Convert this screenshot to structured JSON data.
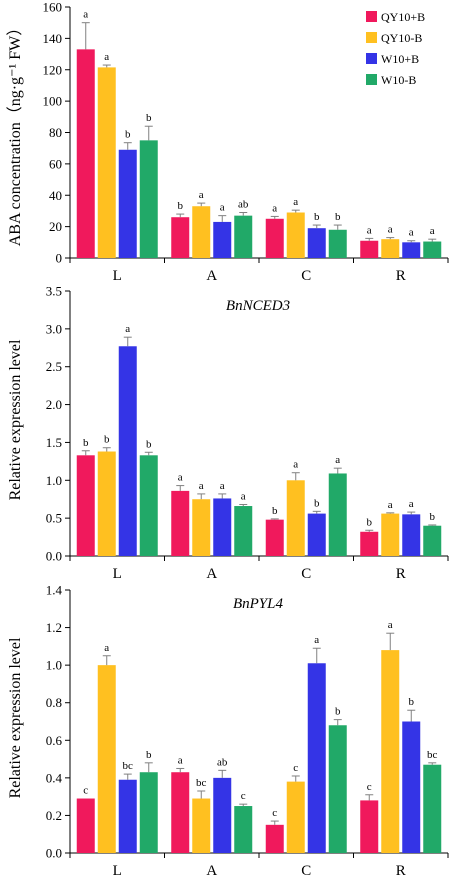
{
  "legend": {
    "entries": [
      "QY10+B",
      "QY10-B",
      "W10+B",
      "W10-B"
    ],
    "colors": [
      "#f0195c",
      "#ffc020",
      "#3434e6",
      "#21a968"
    ],
    "placement": "top-right of panel 1"
  },
  "chart_data": [
    {
      "type": "bar",
      "title": "",
      "ylabel": "ABA concentration（ng·g⁻¹ FW）",
      "categories": [
        "L",
        "A",
        "C",
        "R"
      ],
      "ylim": [
        0,
        160
      ],
      "yticks": [
        0,
        20,
        40,
        60,
        80,
        100,
        120,
        140,
        160
      ],
      "ytick_labels": [
        "0",
        "20",
        "40",
        "60",
        "80",
        "100",
        "120",
        "140",
        "160"
      ],
      "series": [
        {
          "name": "QY10+B",
          "values": [
            133,
            26,
            25,
            11
          ],
          "errors": [
            17,
            2,
            1.5,
            1.5
          ],
          "labels": [
            "a",
            "b",
            "a",
            "a"
          ]
        },
        {
          "name": "QY10-B",
          "values": [
            121.5,
            33,
            29,
            12
          ],
          "errors": [
            1.5,
            2,
            1.5,
            1
          ],
          "labels": [
            "a",
            "a",
            "a",
            "a"
          ]
        },
        {
          "name": "W10+B",
          "values": [
            69,
            23,
            19,
            10
          ],
          "errors": [
            4.5,
            4,
            2,
            1
          ],
          "labels": [
            "b",
            "a",
            "b",
            "a"
          ]
        },
        {
          "name": "W10-B",
          "values": [
            75,
            27,
            18,
            10.5
          ],
          "errors": [
            9,
            2,
            3,
            1.5
          ],
          "labels": [
            "b",
            "ab",
            "b",
            "a"
          ]
        }
      ]
    },
    {
      "type": "bar",
      "title": "BnNCED3",
      "ylabel": "Relative expression level",
      "categories": [
        "L",
        "A",
        "C",
        "R"
      ],
      "ylim": [
        0,
        3.5
      ],
      "yticks": [
        0,
        0.5,
        1,
        1.5,
        2,
        2.5,
        3,
        3.5
      ],
      "ytick_labels": [
        "0.0",
        "0.5",
        "1.0",
        "1.5",
        "2.0",
        "2.5",
        "3.0",
        "3.5"
      ],
      "series": [
        {
          "name": "QY10+B",
          "values": [
            1.33,
            0.86,
            0.48,
            0.32
          ],
          "errors": [
            0.06,
            0.07,
            0.01,
            0.02
          ],
          "labels": [
            "b",
            "a",
            "b",
            "b"
          ]
        },
        {
          "name": "QY10-B",
          "values": [
            1.38,
            0.75,
            1.0,
            0.56
          ],
          "errors": [
            0.05,
            0.07,
            0.1,
            0.01
          ],
          "labels": [
            "b",
            "a",
            "a",
            "a"
          ]
        },
        {
          "name": "W10+B",
          "values": [
            2.77,
            0.76,
            0.56,
            0.55
          ],
          "errors": [
            0.12,
            0.06,
            0.03,
            0.03
          ],
          "labels": [
            "a",
            "a",
            "b",
            "a"
          ]
        },
        {
          "name": "W10-B",
          "values": [
            1.33,
            0.66,
            1.09,
            0.4
          ],
          "errors": [
            0.04,
            0.02,
            0.07,
            0.01
          ],
          "labels": [
            "b",
            "a",
            "a",
            "b"
          ]
        }
      ]
    },
    {
      "type": "bar",
      "title": "BnPYL4",
      "ylabel": "Relative expression level",
      "categories": [
        "L",
        "A",
        "C",
        "R"
      ],
      "ylim": [
        0,
        1.4
      ],
      "yticks": [
        0,
        0.2,
        0.4,
        0.6,
        0.8,
        1,
        1.2,
        1.4
      ],
      "ytick_labels": [
        "0.0",
        "0.2",
        "0.4",
        "0.6",
        "0.8",
        "1.0",
        "1.2",
        "1.4"
      ],
      "series": [
        {
          "name": "QY10+B",
          "values": [
            0.29,
            0.43,
            0.15,
            0.28
          ],
          "errors": [
            0.0,
            0.02,
            0.02,
            0.03
          ],
          "labels": [
            "c",
            "a",
            "c",
            "c"
          ]
        },
        {
          "name": "QY10-B",
          "values": [
            1.0,
            0.29,
            0.38,
            1.08
          ],
          "errors": [
            0.05,
            0.04,
            0.03,
            0.09
          ],
          "labels": [
            "a",
            "bc",
            "c",
            "a"
          ]
        },
        {
          "name": "W10+B",
          "values": [
            0.39,
            0.4,
            1.01,
            0.7
          ],
          "errors": [
            0.03,
            0.04,
            0.08,
            0.06
          ],
          "labels": [
            "bc",
            "ab",
            "a",
            "b"
          ]
        },
        {
          "name": "W10-B",
          "values": [
            0.43,
            0.25,
            0.68,
            0.47
          ],
          "errors": [
            0.05,
            0.01,
            0.03,
            0.01
          ],
          "labels": [
            "b",
            "c",
            "b",
            "bc"
          ]
        }
      ]
    }
  ]
}
